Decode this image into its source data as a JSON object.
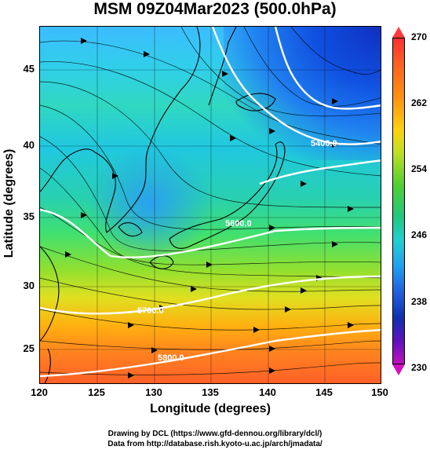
{
  "title": "MSM 09Z04Mar2023 (500.0hPa)",
  "axes": {
    "xlabel": "Longitude (degrees)",
    "ylabel": "Latitude  (degrees)",
    "x_ticks": [
      "120",
      "125",
      "130",
      "135",
      "140",
      "145",
      "150"
    ],
    "y_ticks": [
      "45",
      "40",
      "35",
      "30",
      "25"
    ],
    "xlim": [
      120,
      150
    ],
    "ylim": [
      22.4,
      47.6
    ]
  },
  "colorbar": {
    "ticks": [
      "270",
      "262",
      "254",
      "246",
      "238",
      "230"
    ],
    "range": [
      230,
      270
    ]
  },
  "contour_labels": [
    "5400.0",
    "5600.0",
    "5700.0",
    "5800.0"
  ],
  "credits": {
    "line1": "Drawing by DCL (https://www.gfd-dennou.org/library/dcl/)",
    "line2": "Data from http://database.rish.kyoto-u.ac.jp/arch/jmadata/"
  },
  "colors": {
    "contour": "#ffffff",
    "coastline": "#000000",
    "streamline": "#000000"
  }
}
